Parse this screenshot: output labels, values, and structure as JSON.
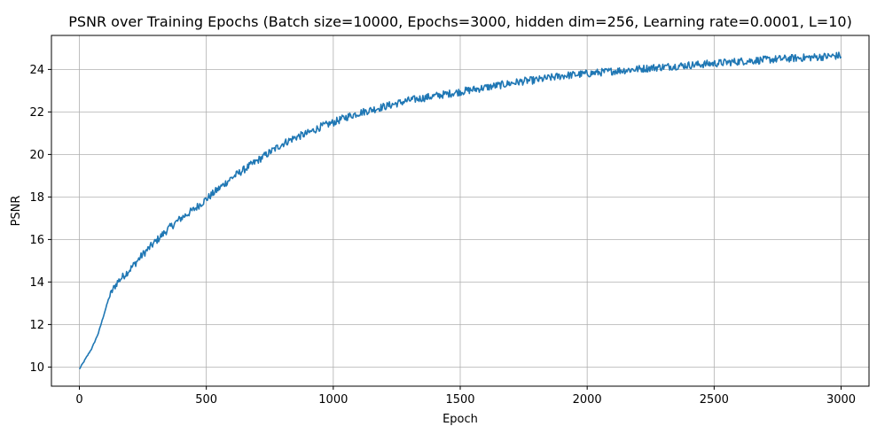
{
  "chart_data": {
    "type": "line",
    "title": "PSNR over Training Epochs (Batch size=10000, Epochs=3000, hidden dim=256, Learning rate=0.0001, L=10)",
    "xlabel": "Epoch",
    "ylabel": "PSNR",
    "xlim": [
      -110,
      3110
    ],
    "ylim": [
      9.1,
      25.6
    ],
    "xticks": [
      0,
      500,
      1000,
      1500,
      2000,
      2500,
      3000
    ],
    "xtick_labels": [
      "0",
      "500",
      "1000",
      "1500",
      "2000",
      "2500",
      "3000"
    ],
    "yticks": [
      10,
      12,
      14,
      16,
      18,
      20,
      22,
      24
    ],
    "ytick_labels": [
      "10",
      "12",
      "14",
      "16",
      "18",
      "20",
      "22",
      "24"
    ],
    "grid": true,
    "line_color": "#1f77b4",
    "series": [
      {
        "x": [
          0,
          25,
          50,
          75,
          100,
          115,
          130,
          150,
          175,
          200,
          250,
          300,
          350,
          400,
          450,
          500,
          550,
          600,
          650,
          700,
          750,
          800,
          850,
          900,
          950,
          1000,
          1050,
          1100,
          1150,
          1200,
          1250,
          1300,
          1350,
          1400,
          1450,
          1500,
          1550,
          1600,
          1650,
          1700,
          1750,
          1800,
          1850,
          1900,
          1950,
          2000,
          2100,
          2200,
          2300,
          2400,
          2500,
          2600,
          2700,
          2800,
          2900,
          3000
        ],
        "y": [
          9.9,
          10.4,
          10.9,
          11.6,
          12.6,
          13.2,
          13.6,
          14.0,
          14.3,
          14.6,
          15.3,
          15.9,
          16.5,
          17.0,
          17.4,
          17.9,
          18.4,
          18.9,
          19.3,
          19.7,
          20.1,
          20.5,
          20.8,
          21.0,
          21.3,
          21.5,
          21.75,
          21.95,
          22.1,
          22.25,
          22.4,
          22.55,
          22.65,
          22.75,
          22.85,
          22.95,
          23.05,
          23.15,
          23.25,
          23.35,
          23.45,
          23.5,
          23.6,
          23.7,
          23.75,
          23.8,
          23.92,
          24.02,
          24.12,
          24.2,
          24.28,
          24.38,
          24.45,
          24.52,
          24.58,
          24.65
        ]
      }
    ]
  }
}
